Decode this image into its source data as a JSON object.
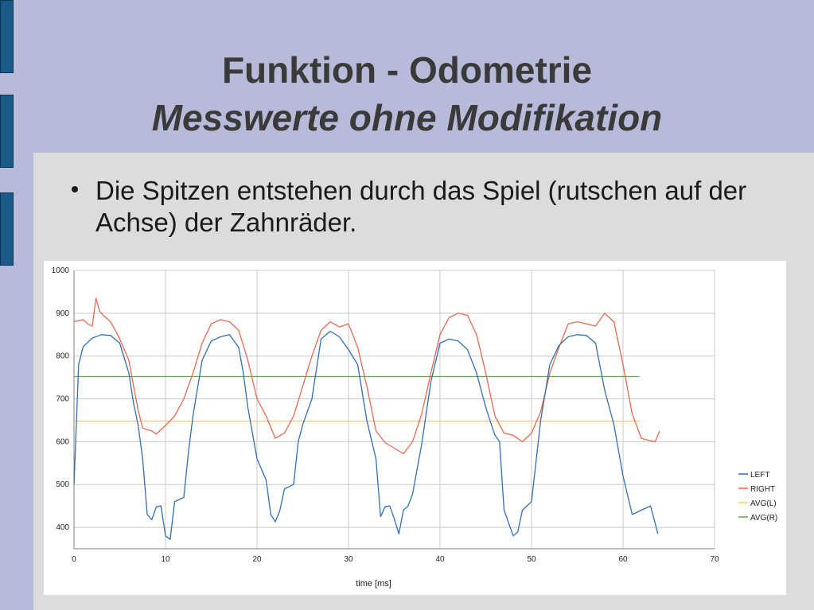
{
  "slide": {
    "title": "Funktion - Odometrie",
    "subtitle": "Messwerte ohne Modifikation",
    "bullet": "Die Spitzen entstehen durch das Spiel (rutschen auf der Achse) der Zahnräder."
  },
  "chart_data": {
    "type": "line",
    "xlabel": "time [ms]",
    "ylabel": "",
    "xlim": [
      0,
      70
    ],
    "ylim": [
      350,
      1000
    ],
    "xticks": [
      0,
      10,
      20,
      30,
      40,
      50,
      60,
      70
    ],
    "yticks": [
      400,
      500,
      600,
      700,
      800,
      900,
      1000
    ],
    "grid": true,
    "legend_position": "right",
    "series": [
      {
        "name": "LEFT",
        "color": "#2f6fb5",
        "points": [
          [
            0,
            500
          ],
          [
            0.2,
            610
          ],
          [
            0.5,
            780
          ],
          [
            1,
            822
          ],
          [
            2,
            842
          ],
          [
            3,
            850
          ],
          [
            4,
            848
          ],
          [
            5,
            830
          ],
          [
            6,
            760
          ],
          [
            6.5,
            690
          ],
          [
            7,
            640
          ],
          [
            7.5,
            560
          ],
          [
            8,
            430
          ],
          [
            8.5,
            418
          ],
          [
            9,
            448
          ],
          [
            9.5,
            450
          ],
          [
            10,
            380
          ],
          [
            10.5,
            372
          ],
          [
            11,
            460
          ],
          [
            12,
            470
          ],
          [
            12.5,
            575
          ],
          [
            13,
            660
          ],
          [
            14,
            790
          ],
          [
            15,
            835
          ],
          [
            16,
            845
          ],
          [
            17,
            850
          ],
          [
            18,
            820
          ],
          [
            18.5,
            760
          ],
          [
            19,
            680
          ],
          [
            20,
            560
          ],
          [
            21,
            510
          ],
          [
            21.5,
            430
          ],
          [
            22,
            413
          ],
          [
            22.5,
            440
          ],
          [
            23,
            490
          ],
          [
            24,
            500
          ],
          [
            24.5,
            600
          ],
          [
            25,
            640
          ],
          [
            26,
            700
          ],
          [
            27,
            840
          ],
          [
            28,
            858
          ],
          [
            29,
            845
          ],
          [
            30,
            815
          ],
          [
            31,
            780
          ],
          [
            32,
            650
          ],
          [
            33,
            560
          ],
          [
            33.5,
            425
          ],
          [
            34,
            448
          ],
          [
            34.5,
            450
          ],
          [
            35,
            420
          ],
          [
            35.5,
            385
          ],
          [
            36,
            440
          ],
          [
            36.5,
            450
          ],
          [
            37,
            478
          ],
          [
            38,
            595
          ],
          [
            39,
            740
          ],
          [
            40,
            830
          ],
          [
            41,
            840
          ],
          [
            42,
            835
          ],
          [
            43,
            815
          ],
          [
            44,
            760
          ],
          [
            45,
            680
          ],
          [
            46,
            615
          ],
          [
            46.5,
            600
          ],
          [
            47,
            440
          ],
          [
            47.5,
            410
          ],
          [
            48,
            380
          ],
          [
            48.5,
            390
          ],
          [
            49,
            440
          ],
          [
            50,
            460
          ],
          [
            51,
            650
          ],
          [
            52,
            780
          ],
          [
            53,
            825
          ],
          [
            54,
            845
          ],
          [
            55,
            850
          ],
          [
            56,
            848
          ],
          [
            57,
            830
          ],
          [
            58,
            720
          ],
          [
            59,
            640
          ],
          [
            60,
            520
          ],
          [
            61,
            430
          ],
          [
            62,
            440
          ],
          [
            63,
            450
          ],
          [
            63.5,
            410
          ],
          [
            63.8,
            385
          ]
        ]
      },
      {
        "name": "RIGHT",
        "color": "#e8694d",
        "points": [
          [
            0,
            880
          ],
          [
            1,
            885
          ],
          [
            1.5,
            875
          ],
          [
            2,
            870
          ],
          [
            2.4,
            935
          ],
          [
            2.8,
            905
          ],
          [
            3.2,
            895
          ],
          [
            4,
            880
          ],
          [
            5,
            840
          ],
          [
            6,
            790
          ],
          [
            6.5,
            730
          ],
          [
            7,
            675
          ],
          [
            7.5,
            632
          ],
          [
            8,
            628
          ],
          [
            8.5,
            625
          ],
          [
            9,
            618
          ],
          [
            10,
            638
          ],
          [
            11,
            660
          ],
          [
            12,
            700
          ],
          [
            13,
            760
          ],
          [
            14,
            830
          ],
          [
            15,
            875
          ],
          [
            16,
            885
          ],
          [
            17,
            880
          ],
          [
            18,
            860
          ],
          [
            19,
            790
          ],
          [
            20,
            700
          ],
          [
            21,
            660
          ],
          [
            22,
            608
          ],
          [
            23,
            620
          ],
          [
            24,
            660
          ],
          [
            25,
            730
          ],
          [
            26,
            800
          ],
          [
            27,
            860
          ],
          [
            28,
            880
          ],
          [
            29,
            868
          ],
          [
            30,
            875
          ],
          [
            31,
            820
          ],
          [
            32,
            730
          ],
          [
            33,
            625
          ],
          [
            34,
            598
          ],
          [
            35,
            585
          ],
          [
            36,
            572
          ],
          [
            37,
            600
          ],
          [
            38,
            665
          ],
          [
            39,
            760
          ],
          [
            40,
            850
          ],
          [
            41,
            890
          ],
          [
            42,
            900
          ],
          [
            43,
            895
          ],
          [
            44,
            850
          ],
          [
            45,
            760
          ],
          [
            46,
            660
          ],
          [
            47,
            620
          ],
          [
            48,
            615
          ],
          [
            49,
            600
          ],
          [
            50,
            620
          ],
          [
            51,
            670
          ],
          [
            52,
            760
          ],
          [
            53,
            820
          ],
          [
            54,
            875
          ],
          [
            55,
            880
          ],
          [
            56,
            875
          ],
          [
            57,
            870
          ],
          [
            58,
            900
          ],
          [
            59,
            880
          ],
          [
            60,
            780
          ],
          [
            61,
            665
          ],
          [
            62,
            608
          ],
          [
            63,
            602
          ],
          [
            63.5,
            600
          ],
          [
            64,
            625
          ]
        ]
      },
      {
        "name": "AVG(L)",
        "color": "#f2d24b",
        "points": [
          [
            0,
            648
          ],
          [
            61.8,
            648
          ]
        ]
      },
      {
        "name": "AVG(R)",
        "color": "#5fa84a",
        "points": [
          [
            0,
            752
          ],
          [
            61.8,
            752
          ]
        ]
      }
    ]
  }
}
